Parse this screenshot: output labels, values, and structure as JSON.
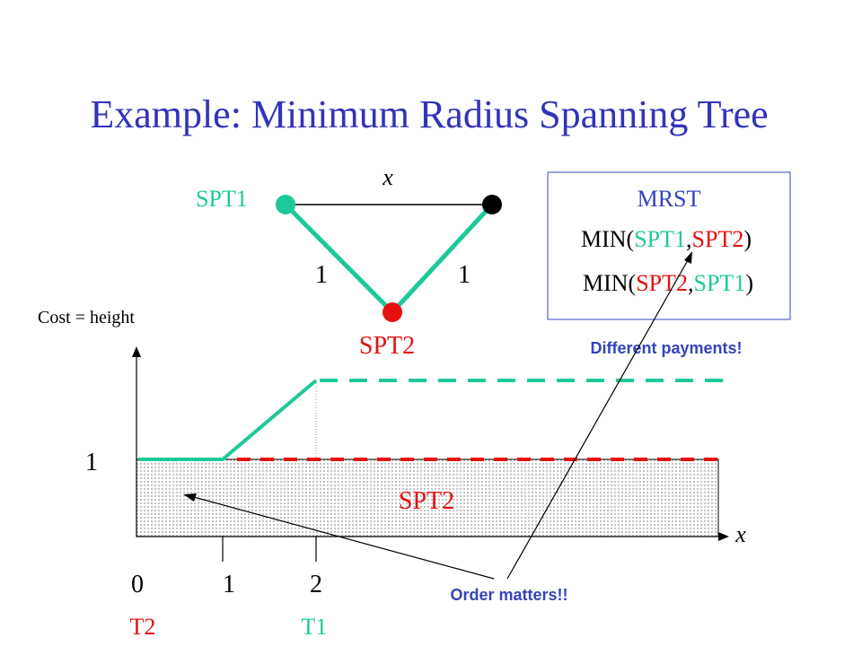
{
  "title": "Example: Minimum Radius Spanning Tree",
  "colors": {
    "title": "#3333bb",
    "green": "#1dc99a",
    "red": "#e81010",
    "blue": "#3344bb",
    "box_border": "#3344bb",
    "black": "#000000"
  },
  "graph": {
    "edge_top_label": "x",
    "node_left_label": "SPT1",
    "node_bottom_label": "SPT2",
    "edge_left_weight": "1",
    "edge_right_weight": "1"
  },
  "mrst_box": {
    "heading": "MRST",
    "line1": {
      "prefix": "MIN(",
      "a": "SPT1",
      "sep": ",",
      "b": "SPT2",
      "suffix": ")"
    },
    "line2": {
      "prefix": "MIN(",
      "a": "SPT2",
      "sep": ",",
      "b": "SPT1",
      "suffix": ")"
    }
  },
  "annotations": {
    "different_payments": "Different payments!",
    "order_matters": "Order matters!!"
  },
  "plot": {
    "y_axis_label": "Cost = height",
    "x_axis_label": "x",
    "y_tick": "1",
    "region_label": "SPT2",
    "x_ticks": [
      "0",
      "1",
      "2"
    ],
    "x_tick_sublabels": [
      "T2",
      "T1"
    ]
  }
}
